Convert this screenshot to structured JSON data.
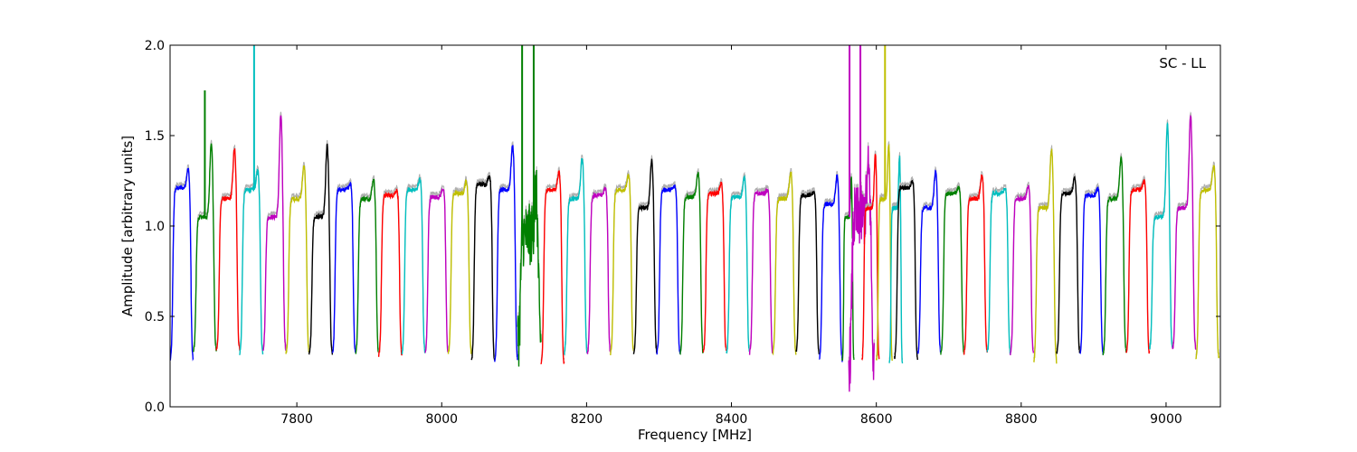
{
  "chart_data": {
    "type": "line",
    "annotation": "SC - LL",
    "xlabel": "Frequency [MHz]",
    "ylabel": "Amplitude [arbitrary units]",
    "xlim": [
      7625,
      9075
    ],
    "ylim": [
      0.0,
      2.0
    ],
    "xticks": [
      7800,
      8000,
      8200,
      8400,
      8600,
      8800,
      9000
    ],
    "yticks": [
      0.0,
      0.5,
      1.0,
      1.5,
      2.0
    ],
    "ytick_labels": [
      "0.0",
      "0.5",
      "1.0",
      "1.5",
      "2.0"
    ],
    "grid": false,
    "channel_width_mhz": 32,
    "colors": [
      "#0000ff",
      "#008000",
      "#ff0000",
      "#00bfbf",
      "#bf00bf",
      "#bfbf00",
      "#000000"
    ],
    "gray_shadow_color": "#b0b0b0",
    "series": [
      {
        "start": 7625,
        "end": 7657,
        "peak": 1.32,
        "level": 1.21,
        "floor": 0.25,
        "color_index": 0
      },
      {
        "start": 7657,
        "end": 7689,
        "peak": 1.47,
        "level": 1.05,
        "floor": 0.3,
        "color_index": 1,
        "spike": [
          7673,
          1.75
        ]
      },
      {
        "start": 7689,
        "end": 7721,
        "peak": 1.43,
        "level": 1.15,
        "floor": 0.31,
        "color_index": 2
      },
      {
        "start": 7721,
        "end": 7753,
        "peak": 1.31,
        "level": 1.2,
        "floor": 0.29,
        "color_index": 3,
        "spike": [
          7741,
          2.0
        ]
      },
      {
        "start": 7753,
        "end": 7785,
        "peak": 1.62,
        "level": 1.05,
        "floor": 0.31,
        "color_index": 4
      },
      {
        "start": 7785,
        "end": 7817,
        "peak": 1.34,
        "level": 1.15,
        "floor": 0.29,
        "color_index": 5
      },
      {
        "start": 7817,
        "end": 7849,
        "peak": 1.45,
        "level": 1.05,
        "floor": 0.29,
        "color_index": 6
      },
      {
        "start": 7849,
        "end": 7881,
        "peak": 1.24,
        "level": 1.2,
        "floor": 0.29,
        "color_index": 0
      },
      {
        "start": 7881,
        "end": 7913,
        "peak": 1.26,
        "level": 1.15,
        "floor": 0.29,
        "color_index": 1
      },
      {
        "start": 7913,
        "end": 7945,
        "peak": 1.2,
        "level": 1.17,
        "floor": 0.28,
        "color_index": 2
      },
      {
        "start": 7945,
        "end": 7977,
        "peak": 1.26,
        "level": 1.2,
        "floor": 0.29,
        "color_index": 3
      },
      {
        "start": 7977,
        "end": 8009,
        "peak": 1.21,
        "level": 1.16,
        "floor": 0.29,
        "color_index": 4
      },
      {
        "start": 8009,
        "end": 8041,
        "peak": 1.25,
        "level": 1.18,
        "floor": 0.29,
        "color_index": 5
      },
      {
        "start": 8041,
        "end": 8073,
        "peak": 1.28,
        "level": 1.23,
        "floor": 0.25,
        "color_index": 6
      },
      {
        "start": 8073,
        "end": 8105,
        "peak": 1.45,
        "level": 1.2,
        "floor": 0.25,
        "color_index": 0
      },
      {
        "start": 8105,
        "end": 8137,
        "peak": 1.18,
        "level": 0.95,
        "floor": 0.37,
        "color_index": 1,
        "noisy": true,
        "spike": [
          8111,
          2.0
        ],
        "spike2": [
          8127,
          2.0
        ]
      },
      {
        "start": 8137,
        "end": 8169,
        "peak": 1.3,
        "level": 1.2,
        "floor": 0.23,
        "color_index": 2
      },
      {
        "start": 8169,
        "end": 8201,
        "peak": 1.38,
        "level": 1.15,
        "floor": 0.29,
        "color_index": 3
      },
      {
        "start": 8201,
        "end": 8233,
        "peak": 1.21,
        "level": 1.17,
        "floor": 0.29,
        "color_index": 4
      },
      {
        "start": 8233,
        "end": 8265,
        "peak": 1.28,
        "level": 1.2,
        "floor": 0.29,
        "color_index": 5
      },
      {
        "start": 8265,
        "end": 8297,
        "peak": 1.37,
        "level": 1.1,
        "floor": 0.29,
        "color_index": 6
      },
      {
        "start": 8297,
        "end": 8329,
        "peak": 1.22,
        "level": 1.2,
        "floor": 0.29,
        "color_index": 0
      },
      {
        "start": 8329,
        "end": 8361,
        "peak": 1.3,
        "level": 1.16,
        "floor": 0.29,
        "color_index": 1
      },
      {
        "start": 8361,
        "end": 8393,
        "peak": 1.24,
        "level": 1.18,
        "floor": 0.29,
        "color_index": 2
      },
      {
        "start": 8393,
        "end": 8425,
        "peak": 1.27,
        "level": 1.16,
        "floor": 0.29,
        "color_index": 3
      },
      {
        "start": 8425,
        "end": 8457,
        "peak": 1.2,
        "level": 1.18,
        "floor": 0.29,
        "color_index": 4
      },
      {
        "start": 8457,
        "end": 8489,
        "peak": 1.3,
        "level": 1.15,
        "floor": 0.29,
        "color_index": 5
      },
      {
        "start": 8489,
        "end": 8521,
        "peak": 1.19,
        "level": 1.17,
        "floor": 0.29,
        "color_index": 6
      },
      {
        "start": 8521,
        "end": 8553,
        "peak": 1.28,
        "level": 1.12,
        "floor": 0.25,
        "color_index": 0
      },
      {
        "start": 8553,
        "end": 8569,
        "peak": 1.27,
        "level": 1.05,
        "floor": 0.25,
        "color_index": 1
      },
      {
        "start": 8562,
        "end": 8597,
        "peak": 1.3,
        "level": 1.05,
        "floor": 0.24,
        "color_index": 4,
        "noisy": true,
        "spike": [
          8563,
          2.0
        ],
        "spike2": [
          8578,
          2.0
        ]
      },
      {
        "start": 8580,
        "end": 8604,
        "peak": 1.4,
        "level": 1.1,
        "floor": 0.25,
        "color_index": 2
      },
      {
        "start": 8600,
        "end": 8622,
        "peak": 1.45,
        "level": 1.15,
        "floor": 0.25,
        "color_index": 5,
        "spike": [
          8612,
          2.0
        ]
      },
      {
        "start": 8618,
        "end": 8636,
        "peak": 1.39,
        "level": 1.1,
        "floor": 0.23,
        "color_index": 3
      },
      {
        "start": 8625,
        "end": 8657,
        "peak": 1.25,
        "level": 1.21,
        "floor": 0.26,
        "color_index": 6
      },
      {
        "start": 8657,
        "end": 8689,
        "peak": 1.31,
        "level": 1.1,
        "floor": 0.29,
        "color_index": 0
      },
      {
        "start": 8689,
        "end": 8721,
        "peak": 1.22,
        "level": 1.18,
        "floor": 0.29,
        "color_index": 1
      },
      {
        "start": 8721,
        "end": 8753,
        "peak": 1.29,
        "level": 1.15,
        "floor": 0.29,
        "color_index": 2
      },
      {
        "start": 8753,
        "end": 8785,
        "peak": 1.21,
        "level": 1.18,
        "floor": 0.29,
        "color_index": 3
      },
      {
        "start": 8785,
        "end": 8817,
        "peak": 1.22,
        "level": 1.15,
        "floor": 0.29,
        "color_index": 4
      },
      {
        "start": 8817,
        "end": 8849,
        "peak": 1.43,
        "level": 1.1,
        "floor": 0.24,
        "color_index": 5
      },
      {
        "start": 8849,
        "end": 8881,
        "peak": 1.27,
        "level": 1.18,
        "floor": 0.29,
        "color_index": 6
      },
      {
        "start": 8881,
        "end": 8913,
        "peak": 1.21,
        "level": 1.17,
        "floor": 0.29,
        "color_index": 0
      },
      {
        "start": 8913,
        "end": 8945,
        "peak": 1.38,
        "level": 1.15,
        "floor": 0.29,
        "color_index": 1
      },
      {
        "start": 8945,
        "end": 8977,
        "peak": 1.25,
        "level": 1.2,
        "floor": 0.29,
        "color_index": 2
      },
      {
        "start": 8977,
        "end": 9009,
        "peak": 1.57,
        "level": 1.05,
        "floor": 0.32,
        "color_index": 3
      },
      {
        "start": 9009,
        "end": 9041,
        "peak": 1.62,
        "level": 1.1,
        "floor": 0.32,
        "color_index": 4
      },
      {
        "start": 9041,
        "end": 9073,
        "peak": 1.34,
        "level": 1.2,
        "floor": 0.26,
        "color_index": 5
      }
    ]
  }
}
